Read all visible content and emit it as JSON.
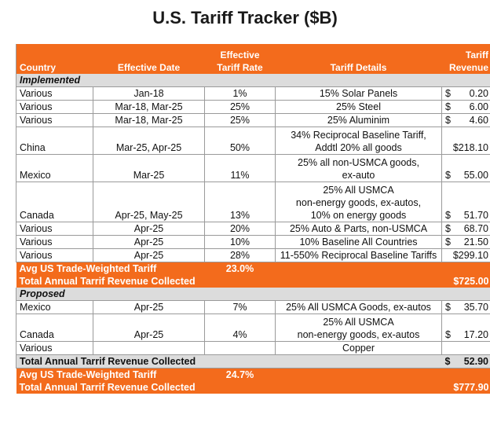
{
  "title": "U.S. Tariff Tracker ($B)",
  "header": {
    "country": "Country",
    "effective_date": "Effective Date",
    "tariff_rate_line1": "Effective",
    "tariff_rate_line2": "Tariff Rate",
    "tariff_details": "Tariff Details",
    "revenue_line1": "Tariff",
    "revenue_line2": "Revenue"
  },
  "implemented": {
    "section_label": "Implemented",
    "rows": [
      {
        "country": "Various",
        "date": "Jan-18",
        "rate": "1%",
        "details": [
          "15% Solar Panels"
        ],
        "currency": "$",
        "revenue": "0.20"
      },
      {
        "country": "Various",
        "date": "Mar-18, Mar-25",
        "rate": "25%",
        "details": [
          "25% Steel"
        ],
        "currency": "$",
        "revenue": "6.00"
      },
      {
        "country": "Various",
        "date": "Mar-18, Mar-25",
        "rate": "25%",
        "details": [
          "25% Aluminim"
        ],
        "currency": "$",
        "revenue": "4.60"
      },
      {
        "country": "China",
        "date": "Mar-25, Apr-25",
        "rate": "50%",
        "details": [
          "34% Reciprocal Baseline Tariff,",
          "Addtl 20% all goods"
        ],
        "currency": "",
        "revenue": "$218.10"
      },
      {
        "country": "Mexico",
        "date": "Mar-25",
        "rate": "11%",
        "details": [
          "25% all non-USMCA goods,",
          "ex-auto"
        ],
        "currency": "$",
        "revenue": "55.00"
      },
      {
        "country": "Canada",
        "date": "Apr-25, May-25",
        "rate": "13%",
        "details": [
          "25% All USMCA",
          "non-energy goods, ex-autos,",
          "10% on energy goods"
        ],
        "currency": "$",
        "revenue": "51.70"
      },
      {
        "country": "Various",
        "date": "Apr-25",
        "rate": "20%",
        "details": [
          "25% Auto & Parts, non-USMCA"
        ],
        "currency": "$",
        "revenue": "68.70"
      },
      {
        "country": "Various",
        "date": "Apr-25",
        "rate": "10%",
        "details": [
          "10% Baseline All Countries"
        ],
        "currency": "$",
        "revenue": "21.50"
      },
      {
        "country": "Various",
        "date": "Apr-25",
        "rate": "28%",
        "details": [
          "11-550% Reciprocal Baseline Tariffs"
        ],
        "currency": "",
        "revenue": "$299.10"
      }
    ],
    "avg_label": "Avg US Trade-Weighted Tariff",
    "avg_value": "23.0%",
    "total_label": "Total Annual Tarrif Revenue Collected",
    "total_value": "$725.00"
  },
  "proposed": {
    "section_label": "Proposed",
    "rows": [
      {
        "country": "Mexico",
        "date": "Apr-25",
        "rate": "7%",
        "details": [
          "25% All USMCA Goods, ex-autos"
        ],
        "currency": "$",
        "revenue": "35.70"
      },
      {
        "country": "Canada",
        "date": "Apr-25",
        "rate": "4%",
        "details": [
          "25% All USMCA",
          "non-energy goods, ex-autos"
        ],
        "currency": "$",
        "revenue": "17.20"
      },
      {
        "country": "Various",
        "date": "",
        "rate": "",
        "details": [
          "Copper"
        ],
        "currency": "",
        "revenue": ""
      }
    ],
    "total_label": "Total Annual Tarrif Revenue Collected",
    "total_currency": "$",
    "total_value": "52.90"
  },
  "grand": {
    "avg_label": "Avg US Trade-Weighted Tariff",
    "avg_value": "24.7%",
    "total_label": "Total Annual Tarrif Revenue Collected",
    "total_value": "$777.90"
  }
}
